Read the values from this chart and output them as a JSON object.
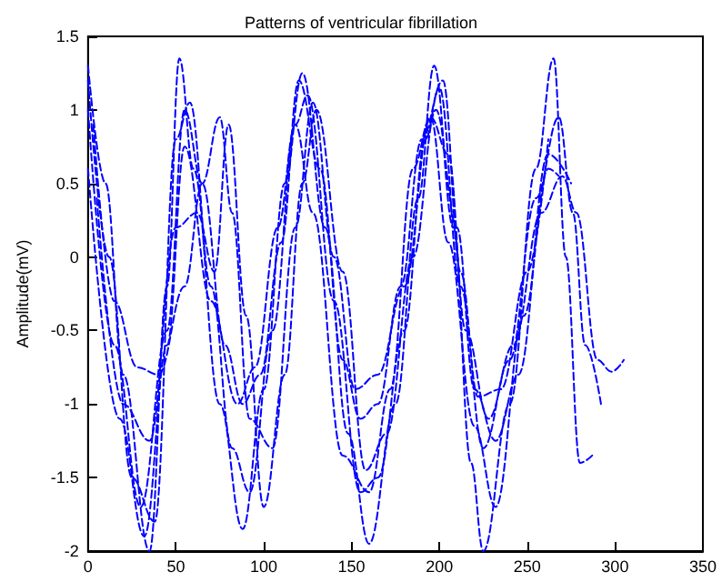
{
  "chart_data": {
    "type": "line",
    "title": "Patterns of ventricular fibrillation",
    "ylabel": "Amplitude(mV)",
    "xlim": [
      0,
      350
    ],
    "xticks": [
      0,
      50,
      100,
      150,
      200,
      250,
      300,
      350
    ],
    "ylim": [
      -2,
      1.5
    ],
    "yticks": [
      -2,
      -1.5,
      -1,
      -0.5,
      0,
      0.5,
      1,
      1.5
    ],
    "grid": false,
    "marker": "none",
    "line_style": "dashed",
    "series": [
      {
        "color": "#0000ff",
        "x": [
          0,
          10,
          20,
          35,
          45,
          52,
          60,
          75,
          88,
          100,
          112,
          122,
          135,
          148,
          160,
          175,
          188,
          197,
          208,
          218,
          225,
          240,
          255,
          265,
          272,
          280,
          287
        ],
        "values": [
          1.3,
          0.5,
          -0.8,
          -2.0,
          -0.2,
          1.35,
          0.6,
          -1.0,
          -1.85,
          -0.9,
          0.5,
          1.25,
          0.2,
          -1.2,
          -1.95,
          -1.0,
          0.4,
          1.3,
          0.2,
          -1.4,
          -2.0,
          -1.0,
          0.6,
          1.35,
          0.0,
          -1.4,
          -1.35
        ]
      },
      {
        "color": "#0000ff",
        "x": [
          0,
          12,
          25,
          38,
          50,
          58,
          70,
          82,
          92,
          105,
          118,
          125,
          140,
          155,
          165,
          180,
          192,
          200,
          212,
          225,
          240,
          255,
          268,
          276,
          283,
          292
        ],
        "values": [
          1.2,
          0.0,
          -1.5,
          -1.8,
          0.8,
          1.05,
          -0.2,
          -1.3,
          -1.6,
          -0.5,
          0.9,
          1.1,
          -0.3,
          -1.6,
          -1.5,
          -0.5,
          0.8,
          1.15,
          -0.2,
          -1.3,
          -0.7,
          0.4,
          0.95,
          0.3,
          -0.6,
          -1.0
        ]
      },
      {
        "color": "#0000ff",
        "x": [
          3,
          15,
          28,
          40,
          55,
          65,
          75,
          82,
          92,
          105,
          118,
          128,
          140,
          152,
          165,
          180,
          195,
          205,
          215,
          228,
          242,
          258,
          270,
          278,
          290,
          298,
          305
        ],
        "values": [
          0.9,
          -0.3,
          -0.75,
          -0.8,
          -0.2,
          0.5,
          0.95,
          0.3,
          -1.1,
          -1.3,
          0.2,
          1.05,
          0.0,
          -0.9,
          -0.8,
          -0.2,
          0.95,
          0.7,
          -0.5,
          -1.1,
          -0.6,
          0.3,
          0.55,
          0.3,
          -0.7,
          -0.78,
          -0.7
        ]
      },
      {
        "color": "#0000ff",
        "x": [
          5,
          20,
          35,
          50,
          62,
          72,
          80,
          90,
          100,
          112,
          122,
          130,
          145,
          158,
          170,
          185,
          198,
          210,
          220,
          232,
          245,
          262,
          275
        ],
        "values": [
          0.4,
          -1.0,
          -1.25,
          0.2,
          0.3,
          -0.1,
          0.9,
          -0.4,
          -1.7,
          -0.8,
          0.5,
          1.0,
          -0.1,
          -1.45,
          -1.2,
          0.0,
          1.0,
          0.2,
          -0.9,
          -1.25,
          -0.8,
          0.7,
          0.5
        ]
      },
      {
        "color": "#0000ff",
        "x": [
          0,
          15,
          30,
          45,
          55,
          65,
          78,
          88,
          98,
          110,
          120,
          132,
          145,
          155,
          165,
          178,
          190,
          202,
          212,
          222,
          235,
          250,
          262
        ],
        "values": [
          1.0,
          -0.6,
          -1.7,
          -0.5,
          1.0,
          0.5,
          -0.6,
          -1.0,
          -0.8,
          0.1,
          1.2,
          0.6,
          -0.7,
          -1.1,
          -1.0,
          -0.2,
          0.8,
          1.2,
          -0.1,
          -0.95,
          -0.9,
          -0.1,
          0.8
        ]
      },
      {
        "color": "#0000ff",
        "x": [
          0,
          18,
          32,
          45,
          55,
          70,
          85,
          95,
          108,
          118,
          128,
          145,
          160,
          172,
          185,
          195,
          205,
          220,
          232,
          248,
          262,
          268
        ],
        "values": [
          0.6,
          -1.1,
          -1.9,
          -0.6,
          0.75,
          -0.3,
          -1.0,
          -0.75,
          0.2,
          0.9,
          0.3,
          -1.35,
          -1.6,
          -0.9,
          0.6,
          0.95,
          0.1,
          -1.15,
          -1.7,
          -0.4,
          0.6,
          0.55
        ]
      }
    ]
  }
}
